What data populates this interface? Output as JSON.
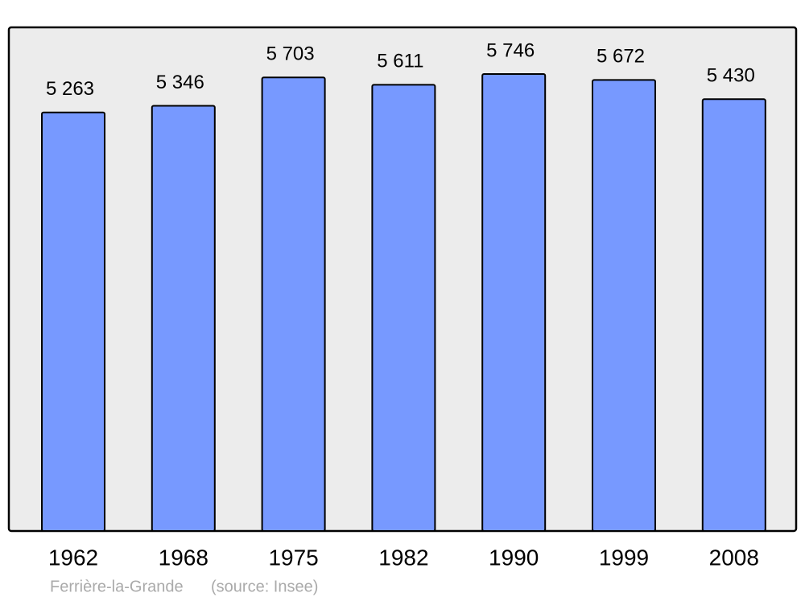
{
  "chart_data": {
    "type": "bar",
    "title": "Ferrière-la-Grande",
    "source": "(source: Insee)",
    "categories": [
      "1962",
      "1968",
      "1975",
      "1982",
      "1990",
      "1999",
      "2008"
    ],
    "values": [
      5263,
      5346,
      5703,
      5611,
      5746,
      5672,
      5430
    ],
    "value_labels": [
      "5 263",
      "5 346",
      "5 703",
      "5 611",
      "5 746",
      "5 672",
      "5 430"
    ],
    "color": "#7799ff"
  }
}
